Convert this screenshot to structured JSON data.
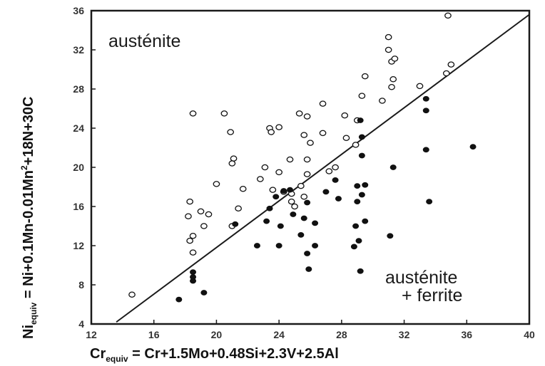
{
  "chart_data": {
    "type": "scatter",
    "xlabel": {
      "main": "Cr",
      "sub": "equiv",
      "rest": " = Cr+1.5Mo+0.48Si+2.3V+2.5Al"
    },
    "ylabel": {
      "main": "Ni",
      "sub": "equiv",
      "rest": " = Ni+0.1Mn-0.01Mn",
      "sup": "2",
      "tail": "+18N+30C"
    },
    "xlim": [
      12,
      40
    ],
    "ylim": [
      4,
      36
    ],
    "xticks": [
      12,
      16,
      20,
      24,
      28,
      32,
      36,
      40
    ],
    "yticks": [
      4,
      8,
      12,
      16,
      20,
      24,
      28,
      32,
      36
    ],
    "grid": false,
    "annotations": {
      "upper_left": "austénite",
      "lower_right_line1": "austénite",
      "lower_right_line2": "+ ferrite"
    },
    "boundary_line": {
      "x": [
        13.6,
        40
      ],
      "y": [
        4.2,
        35.6
      ]
    },
    "series": [
      {
        "marker": "open-circle",
        "points": [
          [
            14.6,
            7.0
          ],
          [
            18.3,
            16.5
          ],
          [
            18.2,
            15.0
          ],
          [
            18.5,
            13.0
          ],
          [
            18.3,
            12.5
          ],
          [
            18.5,
            11.3
          ],
          [
            18.5,
            25.5
          ],
          [
            19.0,
            15.5
          ],
          [
            19.2,
            14.0
          ],
          [
            19.5,
            15.2
          ],
          [
            20.0,
            18.3
          ],
          [
            20.5,
            25.5
          ],
          [
            20.9,
            23.6
          ],
          [
            21.1,
            20.9
          ],
          [
            21.0,
            20.4
          ],
          [
            21.0,
            14.0
          ],
          [
            21.4,
            15.8
          ],
          [
            21.7,
            17.8
          ],
          [
            22.8,
            18.8
          ],
          [
            23.1,
            20.0
          ],
          [
            23.4,
            24.0
          ],
          [
            23.5,
            23.6
          ],
          [
            24.0,
            24.1
          ],
          [
            23.6,
            17.7
          ],
          [
            24.3,
            17.5
          ],
          [
            24.0,
            19.5
          ],
          [
            24.8,
            16.5
          ],
          [
            25.0,
            16.0
          ],
          [
            24.7,
            20.8
          ],
          [
            25.3,
            25.5
          ],
          [
            25.6,
            23.3
          ],
          [
            25.8,
            25.2
          ],
          [
            26.0,
            22.5
          ],
          [
            25.8,
            20.8
          ],
          [
            25.8,
            19.3
          ],
          [
            25.4,
            18.1
          ],
          [
            24.8,
            17.3
          ],
          [
            25.6,
            17.0
          ],
          [
            26.8,
            26.5
          ],
          [
            26.8,
            23.5
          ],
          [
            27.6,
            20.0
          ],
          [
            28.2,
            25.3
          ],
          [
            28.3,
            23.0
          ],
          [
            28.9,
            22.3
          ],
          [
            29.3,
            27.3
          ],
          [
            29.5,
            29.3
          ],
          [
            30.6,
            26.8
          ],
          [
            31.0,
            33.3
          ],
          [
            31.0,
            32.0
          ],
          [
            31.2,
            30.8
          ],
          [
            31.4,
            31.1
          ],
          [
            31.3,
            29.0
          ],
          [
            31.2,
            28.2
          ],
          [
            33.0,
            28.3
          ],
          [
            34.7,
            29.6
          ],
          [
            35.0,
            30.5
          ],
          [
            34.8,
            35.5
          ],
          [
            29.0,
            24.8
          ],
          [
            27.2,
            19.6
          ]
        ]
      },
      {
        "marker": "filled-circle",
        "points": [
          [
            17.6,
            6.5
          ],
          [
            18.5,
            8.4
          ],
          [
            18.5,
            8.8
          ],
          [
            18.5,
            9.3
          ],
          [
            19.2,
            7.2
          ],
          [
            21.2,
            14.2
          ],
          [
            22.6,
            12.0
          ],
          [
            23.2,
            14.5
          ],
          [
            23.4,
            15.8
          ],
          [
            23.8,
            17.0
          ],
          [
            24.0,
            12.0
          ],
          [
            24.1,
            14.0
          ],
          [
            24.3,
            17.6
          ],
          [
            24.7,
            17.7
          ],
          [
            24.9,
            15.2
          ],
          [
            25.4,
            13.1
          ],
          [
            25.6,
            14.8
          ],
          [
            25.8,
            16.4
          ],
          [
            25.8,
            11.2
          ],
          [
            25.9,
            9.6
          ],
          [
            26.3,
            12.0
          ],
          [
            26.3,
            14.3
          ],
          [
            27.0,
            17.5
          ],
          [
            27.6,
            18.7
          ],
          [
            27.8,
            16.8
          ],
          [
            28.8,
            11.9
          ],
          [
            28.9,
            14.0
          ],
          [
            29.0,
            16.5
          ],
          [
            29.0,
            18.1
          ],
          [
            29.1,
            12.5
          ],
          [
            29.2,
            9.4
          ],
          [
            29.3,
            17.2
          ],
          [
            29.3,
            21.2
          ],
          [
            29.2,
            24.8
          ],
          [
            29.3,
            23.1
          ],
          [
            29.5,
            18.2
          ],
          [
            29.5,
            14.5
          ],
          [
            31.1,
            13.0
          ],
          [
            31.3,
            20.0
          ],
          [
            33.4,
            21.8
          ],
          [
            33.4,
            25.8
          ],
          [
            33.4,
            27.0
          ],
          [
            33.6,
            16.5
          ],
          [
            36.4,
            22.1
          ]
        ]
      }
    ]
  }
}
